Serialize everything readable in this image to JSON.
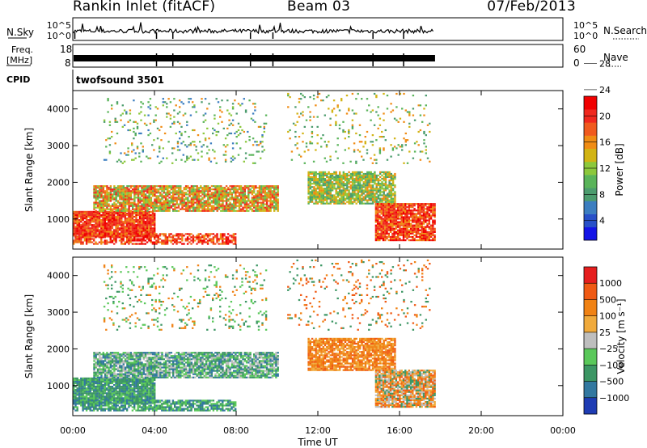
{
  "header": {
    "title": "Rankin Inlet (fitACF)",
    "beam": "Beam 03",
    "date": "07/Feb/2013"
  },
  "strips": {
    "nsky_label": "N.Sky",
    "nsky_ticks": [
      "10^5",
      "10^0"
    ],
    "nsearch_label": "N.Search",
    "nsearch_ticks": [
      "10^5",
      "10^0"
    ],
    "freq_label": "Freq.",
    "freq_unit": "[MHz]",
    "freq_ticks": [
      "18",
      "8"
    ],
    "nave_label": "Nave",
    "nave_ticks": [
      "60",
      "0"
    ],
    "cpid_label": "CPID",
    "cpid_value": "twofsound 3501"
  },
  "chart_data": [
    {
      "type": "heatmap",
      "name": "power-panel",
      "ylabel": "Slant Range [km]",
      "xlabel": "",
      "x_range_hours": [
        0,
        24
      ],
      "y_range_km": [
        180,
        4500
      ],
      "ytick_labels": [
        "1000",
        "2000",
        "3000",
        "4000"
      ],
      "ytick_values": [
        1000,
        2000,
        3000,
        4000
      ],
      "colorbar_label": "Power [dB]",
      "colorbar_ticks": [
        "4",
        "8",
        "12",
        "16",
        "20",
        "24",
        "28"
      ],
      "colorbar_colors": [
        "#1414e6",
        "#2850c8",
        "#3c7ec0",
        "#4c9c6e",
        "#5ab45a",
        "#8cc83c",
        "#d2b414",
        "#f08c14",
        "#f05a1e",
        "#f0281e",
        "#f00000"
      ],
      "data_end_hours": 17.7
    },
    {
      "type": "heatmap",
      "name": "velocity-panel",
      "ylabel": "Slant Range [km]",
      "xlabel": "Time UT",
      "x_range_hours": [
        0,
        24
      ],
      "y_range_km": [
        180,
        4500
      ],
      "ytick_labels": [
        "1000",
        "2000",
        "3000",
        "4000"
      ],
      "ytick_values": [
        1000,
        2000,
        3000,
        4000
      ],
      "xtick_labels": [
        "00:00",
        "04:00",
        "08:00",
        "12:00",
        "16:00",
        "20:00",
        "00:00"
      ],
      "xtick_values": [
        0,
        4,
        8,
        12,
        16,
        20,
        24
      ],
      "colorbar_label": "Velocity [m s⁻¹]",
      "colorbar_ticks": [
        "1000",
        "500",
        "100",
        "25",
        "−25",
        "−100",
        "−500",
        "−1000"
      ],
      "colorbar_colors": [
        "#1e3cb4",
        "#3278a0",
        "#3c9664",
        "#5ac85a",
        "#bebebe",
        "#f0aa3c",
        "#f08214",
        "#f05a14",
        "#e61e1e"
      ],
      "data_end_hours": 17.7
    }
  ]
}
